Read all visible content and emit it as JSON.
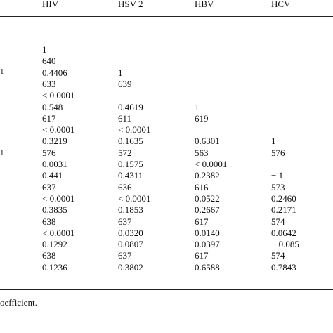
{
  "table": {
    "headers": [
      "HIV",
      "HSV 2",
      "HBV",
      "HCV"
    ],
    "row_marks": [
      "1",
      "1"
    ],
    "rows": [
      [
        "1",
        "",
        "",
        ""
      ],
      [
        "640",
        "",
        "",
        ""
      ],
      [
        "0.4406",
        "1",
        "",
        ""
      ],
      [
        "633",
        "639",
        "",
        ""
      ],
      [
        "< 0.0001",
        "",
        "",
        ""
      ],
      [
        "0.548",
        "0.4619",
        "1",
        ""
      ],
      [
        "617",
        "611",
        "619",
        ""
      ],
      [
        "< 0.0001",
        "< 0.0001",
        "",
        ""
      ],
      [
        "0.3219",
        "0.1635",
        "0.6301",
        "1"
      ],
      [
        "576",
        "572",
        "563",
        "576"
      ],
      [
        "0.0031",
        "0.1575",
        "< 0.0001",
        ""
      ],
      [
        "0.441",
        "0.4311",
        "0.2382",
        "− 1"
      ],
      [
        "637",
        "636",
        "616",
        "573"
      ],
      [
        "< 0.0001",
        "< 0.0001",
        "0.0522",
        "0.2460"
      ],
      [
        "0.3835",
        "0.1853",
        "0.2667",
        "0.2171"
      ],
      [
        "638",
        "637",
        "617",
        "574"
      ],
      [
        "< 0.0001",
        "0.0320",
        "0.0140",
        "0.0642"
      ],
      [
        "0.1292",
        "0.0807",
        "0.0397",
        "− 0.085"
      ],
      [
        "638",
        "637",
        "617",
        "574"
      ],
      [
        "0.1236",
        "0.3802",
        "0.6588",
        "0.7843"
      ]
    ]
  },
  "footnote": "oefficient."
}
